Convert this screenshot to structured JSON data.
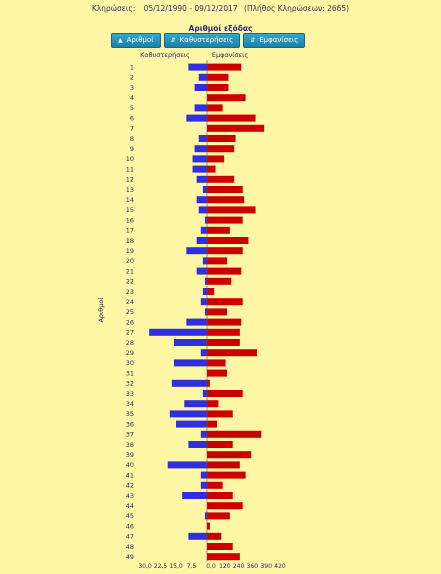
{
  "header": {
    "label": "Κληρώσεις:",
    "range": "05/12/1990 - 09/12/2017",
    "count_text": "(Πλήθος Κληρώσεων: 2665)"
  },
  "sort": {
    "title": "Αριθμοί εξόδας",
    "buttons": [
      {
        "label": "Αριθμοί",
        "icon": "caret-up-icon"
      },
      {
        "label": "Καθυστερήσεις",
        "icon": "sort-icon"
      },
      {
        "label": "Εμφανίσεις",
        "icon": "sort-icon"
      }
    ]
  },
  "colors": {
    "delay_bar": "#2f2fe0",
    "appearance_bar": "#cc0000",
    "background": "#fdf6a4"
  },
  "chart_data": {
    "type": "bar",
    "orientation": "horizontal-diverging",
    "y_label": "Αριθμοί",
    "left_header": "Καθυστερήσεις",
    "right_header": "Εμφανίσεις",
    "categories": [
      "1",
      "2",
      "3",
      "4",
      "5",
      "6",
      "7",
      "8",
      "9",
      "10",
      "11",
      "12",
      "13",
      "14",
      "15",
      "16",
      "17",
      "18",
      "19",
      "20",
      "21",
      "22",
      "23",
      "24",
      "25",
      "26",
      "27",
      "28",
      "29",
      "30",
      "31",
      "32",
      "33",
      "34",
      "35",
      "36",
      "37",
      "38",
      "39",
      "40",
      "41",
      "42",
      "43",
      "44",
      "45",
      "46",
      "47",
      "48",
      "49"
    ],
    "left_ticks": [
      "30,0",
      "22,5",
      "15,0",
      "7,5"
    ],
    "right_ticks": [
      "0,0",
      "120",
      "240",
      "360",
      "390",
      "420"
    ],
    "left_max": 30,
    "right_max": 420,
    "series": [
      {
        "name": "Καθυστερήσεις",
        "values": [
          9,
          4,
          6,
          0,
          6,
          10,
          0,
          4,
          6,
          7,
          7,
          5,
          2,
          5,
          4,
          1,
          3,
          5,
          10,
          2,
          5,
          1,
          2,
          3,
          1,
          10,
          28,
          16,
          3,
          16,
          0,
          17,
          2,
          11,
          18,
          15,
          3,
          9,
          0,
          19,
          3,
          3,
          12,
          0,
          1,
          0,
          9,
          0,
          0
        ]
      },
      {
        "name": "Εμφανίσεις",
        "values": [
          240,
          150,
          150,
          270,
          110,
          340,
          400,
          200,
          190,
          120,
          60,
          190,
          250,
          260,
          340,
          250,
          160,
          290,
          250,
          140,
          240,
          170,
          50,
          250,
          140,
          240,
          230,
          230,
          350,
          130,
          140,
          20,
          250,
          80,
          180,
          70,
          380,
          180,
          310,
          230,
          270,
          110,
          180,
          250,
          160,
          20,
          100,
          180,
          230
        ]
      }
    ]
  }
}
